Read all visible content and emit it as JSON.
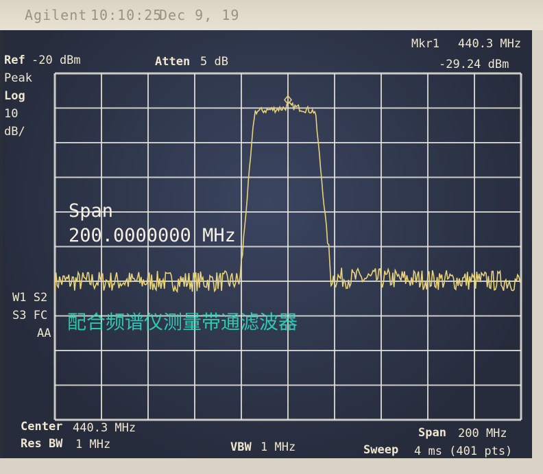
{
  "header": {
    "brand": "Agilent",
    "time": "10:10:25",
    "date": "Dec 9, 19"
  },
  "top": {
    "ref_label": "Ref",
    "ref_value": "-20 dBm",
    "atten_label": "Atten",
    "atten_value": "5 dB",
    "marker_label": "Mkr1",
    "marker_freq": "440.3 MHz",
    "marker_level": "-29.24 dBm"
  },
  "left": {
    "detector": "Peak",
    "scale_type": "Log",
    "scale_value": "10",
    "scale_unit": "dB/",
    "flags1": "W1  S2",
    "flags2": "S3  FC",
    "flags3": "AA"
  },
  "overlay": {
    "span_label": "Span",
    "span_value": "200.0000000 MHz",
    "caption": "配合频谱仪测量带通滤波器"
  },
  "bottom": {
    "center_label": "Center",
    "center_value": "440.3 MHz",
    "rbw_label": "Res BW",
    "rbw_value": "1 MHz",
    "vbw_label": "VBW",
    "vbw_value": "1 MHz",
    "span_label": "Span",
    "span_value": "200 MHz",
    "sweep_label": "Sweep",
    "sweep_value": "4 ms (401 pts)"
  },
  "colors": {
    "trace": "#e8d27a",
    "grid": "#e8e6dc",
    "text": "#efe7cf",
    "caption": "#2fe0c0"
  },
  "chart_data": {
    "type": "line",
    "xlabel": "",
    "ylabel": "",
    "xlim": [
      340.3,
      540.3
    ],
    "ylim": [
      -120,
      -20
    ],
    "grid": true,
    "divisions": {
      "x": 10,
      "y": 10
    },
    "points": 401,
    "series": [
      {
        "x": [
          340.3,
          419.7,
          426.0,
          438.8,
          440.3,
          452.0,
          458.8,
          540.3
        ],
        "y": [
          -80,
          -80,
          -31,
          -30,
          -29.24,
          -31,
          -79,
          -80
        ]
      }
    ],
    "marker": {
      "x": 440.3,
      "y": -29.24
    }
  }
}
